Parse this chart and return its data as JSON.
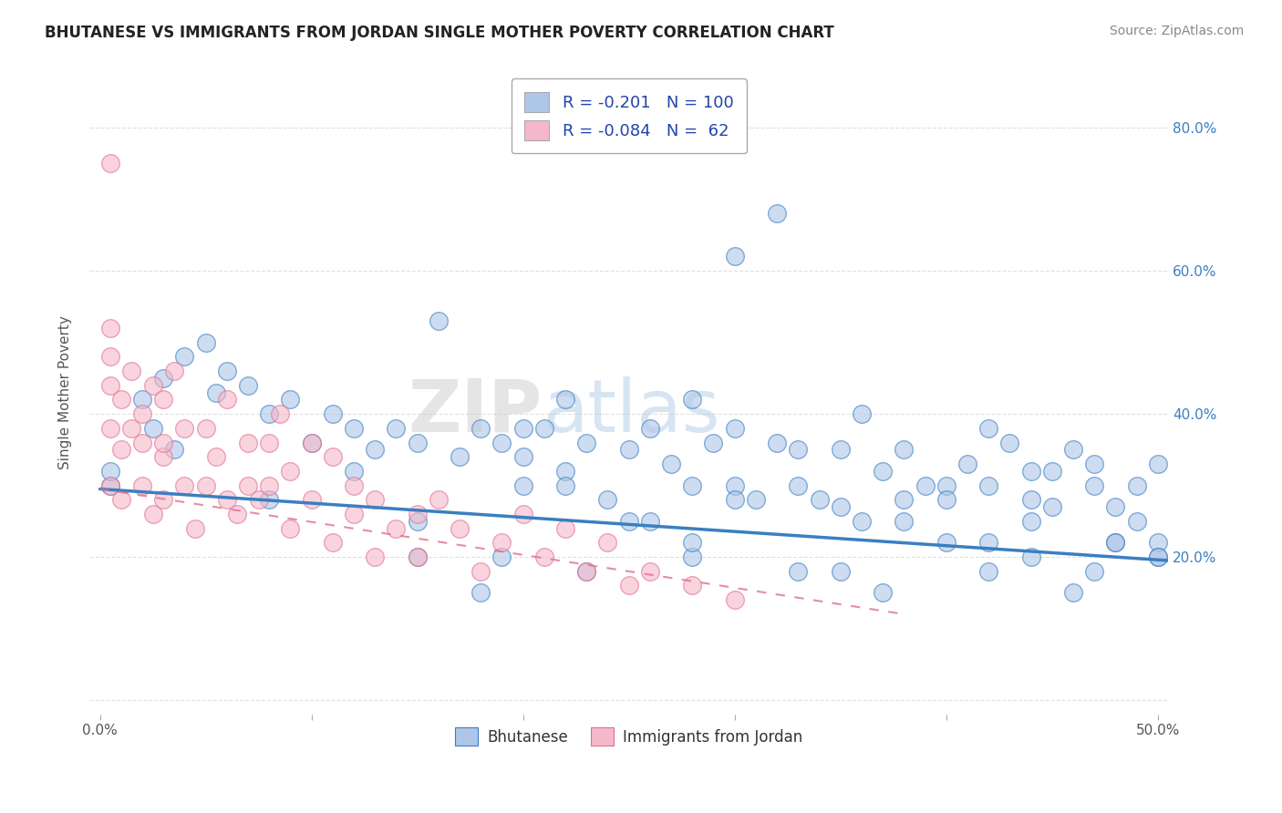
{
  "title": "BHUTANESE VS IMMIGRANTS FROM JORDAN SINGLE MOTHER POVERTY CORRELATION CHART",
  "source": "Source: ZipAtlas.com",
  "ylabel": "Single Mother Poverty",
  "xlim": [
    -0.005,
    0.505
  ],
  "ylim": [
    -0.02,
    0.88
  ],
  "xticks": [
    0.0,
    0.1,
    0.2,
    0.3,
    0.4,
    0.5
  ],
  "xticklabels": [
    "0.0%",
    "",
    "",
    "",
    "",
    "50.0%"
  ],
  "yticks_right": [
    0.2,
    0.4,
    0.6,
    0.8
  ],
  "ytick_right_labels": [
    "20.0%",
    "40.0%",
    "60.0%",
    "80.0%"
  ],
  "legend_items": [
    {
      "label": "Bhutanese",
      "R": "-0.201",
      "N": "100",
      "color": "#aec6e8",
      "line_color": "#3a7fc1"
    },
    {
      "label": "Immigrants from Jordan",
      "R": "-0.084",
      "N": "62",
      "color": "#f5b8ca",
      "line_color": "#e07090"
    }
  ],
  "background_color": "#ffffff",
  "grid_color": "#cccccc",
  "watermark_zip": "ZIP",
  "watermark_atlas": "atlas",
  "bhutanese_x": [
    0.005,
    0.16,
    0.005,
    0.05,
    0.02,
    0.03,
    0.04,
    0.025,
    0.035,
    0.06,
    0.07,
    0.08,
    0.055,
    0.09,
    0.12,
    0.1,
    0.11,
    0.13,
    0.14,
    0.15,
    0.17,
    0.18,
    0.19,
    0.2,
    0.21,
    0.22,
    0.22,
    0.23,
    0.24,
    0.25,
    0.26,
    0.27,
    0.28,
    0.28,
    0.29,
    0.3,
    0.3,
    0.31,
    0.32,
    0.33,
    0.33,
    0.34,
    0.35,
    0.35,
    0.36,
    0.37,
    0.38,
    0.38,
    0.39,
    0.4,
    0.41,
    0.42,
    0.42,
    0.43,
    0.44,
    0.44,
    0.45,
    0.45,
    0.46,
    0.47,
    0.47,
    0.48,
    0.48,
    0.49,
    0.49,
    0.5,
    0.5,
    0.3,
    0.32,
    0.2,
    0.15,
    0.25,
    0.18,
    0.38,
    0.42,
    0.28,
    0.35,
    0.4,
    0.44,
    0.47,
    0.5,
    0.2,
    0.22,
    0.26,
    0.3,
    0.36,
    0.4,
    0.44,
    0.48,
    0.15,
    0.19,
    0.23,
    0.28,
    0.33,
    0.37,
    0.42,
    0.46,
    0.5,
    0.08,
    0.12
  ],
  "bhutanese_y": [
    0.3,
    0.53,
    0.32,
    0.5,
    0.42,
    0.45,
    0.48,
    0.38,
    0.35,
    0.46,
    0.44,
    0.4,
    0.43,
    0.42,
    0.38,
    0.36,
    0.4,
    0.35,
    0.38,
    0.36,
    0.34,
    0.38,
    0.36,
    0.34,
    0.38,
    0.42,
    0.32,
    0.36,
    0.28,
    0.35,
    0.38,
    0.33,
    0.42,
    0.3,
    0.36,
    0.3,
    0.38,
    0.28,
    0.36,
    0.3,
    0.35,
    0.28,
    0.35,
    0.27,
    0.4,
    0.32,
    0.28,
    0.35,
    0.3,
    0.3,
    0.33,
    0.38,
    0.3,
    0.36,
    0.28,
    0.32,
    0.32,
    0.27,
    0.35,
    0.3,
    0.33,
    0.27,
    0.22,
    0.3,
    0.25,
    0.33,
    0.22,
    0.62,
    0.68,
    0.3,
    0.2,
    0.25,
    0.15,
    0.25,
    0.22,
    0.2,
    0.18,
    0.22,
    0.2,
    0.18,
    0.2,
    0.38,
    0.3,
    0.25,
    0.28,
    0.25,
    0.28,
    0.25,
    0.22,
    0.25,
    0.2,
    0.18,
    0.22,
    0.18,
    0.15,
    0.18,
    0.15,
    0.2,
    0.28,
    0.32
  ],
  "jordan_x": [
    0.005,
    0.005,
    0.01,
    0.01,
    0.01,
    0.015,
    0.015,
    0.02,
    0.02,
    0.02,
    0.025,
    0.025,
    0.03,
    0.03,
    0.03,
    0.03,
    0.035,
    0.04,
    0.04,
    0.045,
    0.05,
    0.05,
    0.055,
    0.06,
    0.06,
    0.065,
    0.07,
    0.07,
    0.075,
    0.08,
    0.08,
    0.085,
    0.09,
    0.09,
    0.1,
    0.1,
    0.11,
    0.11,
    0.12,
    0.12,
    0.13,
    0.13,
    0.14,
    0.15,
    0.15,
    0.16,
    0.17,
    0.18,
    0.19,
    0.2,
    0.21,
    0.22,
    0.23,
    0.24,
    0.25,
    0.26,
    0.28,
    0.3,
    0.005,
    0.005,
    0.005,
    0.005
  ],
  "jordan_y": [
    0.75,
    0.3,
    0.42,
    0.35,
    0.28,
    0.46,
    0.38,
    0.4,
    0.36,
    0.3,
    0.44,
    0.26,
    0.42,
    0.34,
    0.28,
    0.36,
    0.46,
    0.38,
    0.3,
    0.24,
    0.38,
    0.3,
    0.34,
    0.28,
    0.42,
    0.26,
    0.36,
    0.3,
    0.28,
    0.36,
    0.3,
    0.4,
    0.24,
    0.32,
    0.36,
    0.28,
    0.34,
    0.22,
    0.3,
    0.26,
    0.2,
    0.28,
    0.24,
    0.26,
    0.2,
    0.28,
    0.24,
    0.18,
    0.22,
    0.26,
    0.2,
    0.24,
    0.18,
    0.22,
    0.16,
    0.18,
    0.16,
    0.14,
    0.44,
    0.48,
    0.52,
    0.38
  ],
  "blue_line_x": [
    0.0,
    0.505
  ],
  "blue_line_y": [
    0.295,
    0.195
  ],
  "pink_line_x": [
    0.0,
    0.38
  ],
  "pink_line_y": [
    0.295,
    0.12
  ]
}
